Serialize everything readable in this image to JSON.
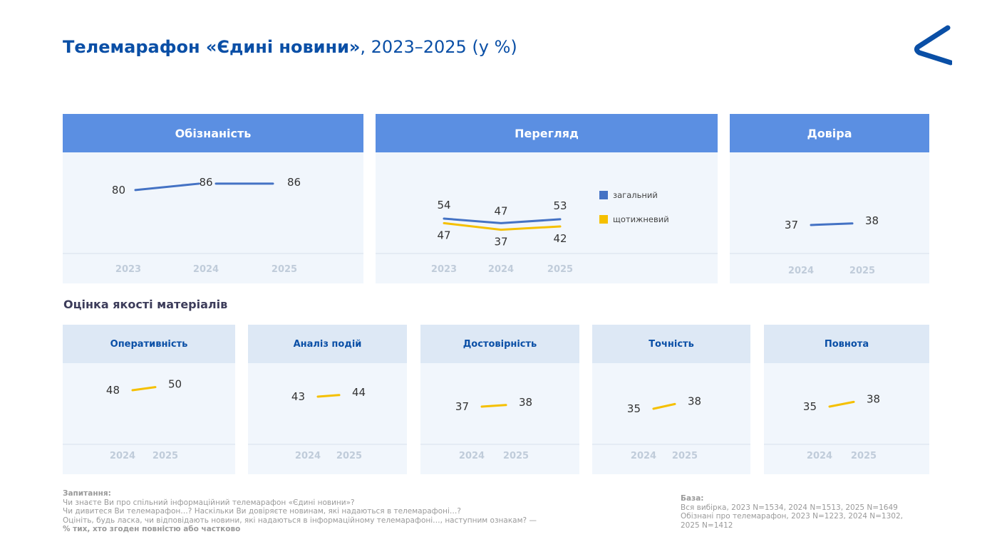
{
  "header": {
    "title_bold": "Телемарафон «Єдині новини»",
    "title_rest": ", 2023–2025 (у %)"
  },
  "colors": {
    "blue_line": "#4472c4",
    "yellow_line": "#f5c000",
    "axis_label": "#c0ccda",
    "header_blue": "#5b8fe2"
  },
  "sections": {
    "quality_title": "Оцінка якості матеріалів"
  },
  "chart_data": [
    {
      "type": "line",
      "title": "Обізнаність",
      "categories": [
        "2023",
        "2024",
        "2025"
      ],
      "series": [
        {
          "values": [
            80,
            86,
            86
          ],
          "color": "#4472c4"
        }
      ],
      "ylim": [
        30,
        95
      ]
    },
    {
      "type": "line",
      "title": "Перегляд",
      "categories": [
        "2023",
        "2024",
        "2025"
      ],
      "series": [
        {
          "name": "загальний",
          "values": [
            54,
            47,
            53
          ],
          "color": "#4472c4"
        },
        {
          "name": "щотижневий",
          "values": [
            47,
            37,
            42
          ],
          "color": "#f5c000"
        }
      ],
      "legend": "right"
    },
    {
      "type": "line",
      "title": "Довіра",
      "categories": [
        "2024",
        "2025"
      ],
      "series": [
        {
          "values": [
            37,
            38
          ],
          "color": "#4472c4"
        }
      ]
    },
    {
      "type": "line",
      "title": "Оперативність",
      "categories": [
        "2024",
        "2025"
      ],
      "series": [
        {
          "values": [
            48,
            50
          ],
          "color": "#f5c000"
        }
      ]
    },
    {
      "type": "line",
      "title": "Аналіз подій",
      "categories": [
        "2024",
        "2025"
      ],
      "series": [
        {
          "values": [
            43,
            44
          ],
          "color": "#f5c000"
        }
      ]
    },
    {
      "type": "line",
      "title": "Достовірність",
      "categories": [
        "2024",
        "2025"
      ],
      "series": [
        {
          "values": [
            37,
            38
          ],
          "color": "#f5c000"
        }
      ]
    },
    {
      "type": "line",
      "title": "Точність",
      "categories": [
        "2024",
        "2025"
      ],
      "series": [
        {
          "values": [
            35,
            38
          ],
          "color": "#f5c000"
        }
      ]
    },
    {
      "type": "line",
      "title": "Повнота",
      "categories": [
        "2024",
        "2025"
      ],
      "series": [
        {
          "values": [
            35,
            38
          ],
          "color": "#f5c000"
        }
      ]
    }
  ],
  "questions": {
    "label": "Запитання:",
    "lines": [
      "Чи знаєте Ви про спільний інформаційний телемарафон «Єдині новини»?",
      "Чи дивитеся Ви телемарафон…? Наскільки Ви довіряєте новинам, які надаються в телемарафоні…?",
      "Оцініть, будь ласка, чи відповідають новини, які надаються в інформаційному телемарафоні…, наступним ознакам? —"
    ],
    "emphasis": "% тих, хто згоден повністю або частково"
  },
  "base": {
    "label": "База:",
    "lines": [
      "Вся вибірка, 2023  N=1534, 2024 N=1513, 2025 N=1649",
      "Обізнані про телемарафон, 2023  N=1223, 2024 N=1302,",
      "2025 N=1412"
    ]
  }
}
